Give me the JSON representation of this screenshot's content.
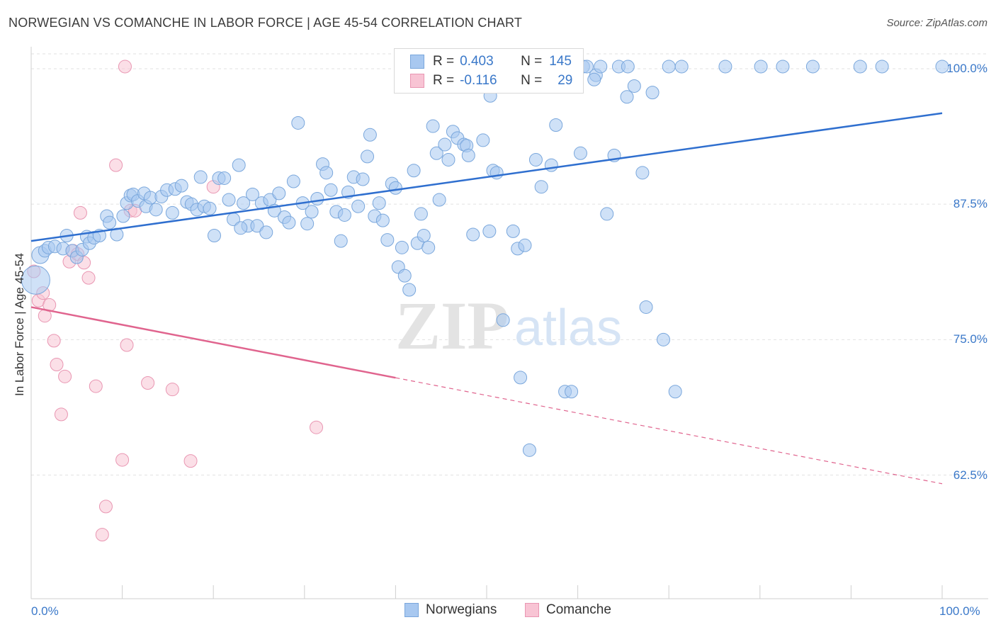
{
  "title": "NORWEGIAN VS COMANCHE IN LABOR FORCE | AGE 45-54 CORRELATION CHART",
  "source": "Source: ZipAtlas.com",
  "watermark": {
    "zip": "ZIP",
    "atlas": "atlas"
  },
  "legend": {
    "rows": [
      {
        "r_label": "R =",
        "r_value": "0.403",
        "n_label": "N =",
        "n_value": "145"
      },
      {
        "r_label": "R =",
        "r_value": "-0.116",
        "n_label": "N =",
        "n_value": "29"
      }
    ]
  },
  "bottom_legend": {
    "series1": "Norwegians",
    "series2": "Comanche"
  },
  "colors": {
    "norwegian_fill": "#a8c8f0",
    "norwegian_stroke": "#7aa7dc",
    "norwegian_line": "#2f6fcf",
    "comanche_fill": "#f8c4d4",
    "comanche_stroke": "#e996b2",
    "comanche_line": "#e0648e",
    "tick_text": "#3a78c9",
    "grid": "#e2e2e2"
  },
  "chart_data": {
    "type": "scatter",
    "title": "NORWEGIAN VS COMANCHE IN LABOR FORCE | AGE 45-54 CORRELATION CHART",
    "xlabel": "",
    "ylabel": "In Labor Force | Age 45-54",
    "xlim": [
      0,
      100
    ],
    "ylim": [
      50,
      101.5
    ],
    "x_tick_labels": [
      "0.0%",
      "100.0%"
    ],
    "y_tick_labels": [
      "62.5%",
      "75.0%",
      "87.5%",
      "100.0%"
    ],
    "y_ticks": [
      62.5,
      75.0,
      87.5,
      100.0
    ],
    "grid": true,
    "legend_position": "top-center",
    "series": [
      {
        "name": "Norwegians",
        "r": 0.403,
        "n": 145,
        "trend": {
          "x": [
            0,
            100
          ],
          "y": [
            84.1,
            95.9
          ],
          "dashed_from": null
        },
        "points": [
          [
            0.5,
            80.5,
            "L"
          ],
          [
            1.0,
            82.8,
            "M"
          ],
          [
            1.5,
            83.2
          ],
          [
            1.9,
            83.5
          ],
          [
            2.6,
            83.6
          ],
          [
            3.5,
            83.4
          ],
          [
            3.9,
            84.6
          ],
          [
            4.5,
            83.2
          ],
          [
            5.0,
            82.6
          ],
          [
            5.6,
            83.3
          ],
          [
            6.1,
            84.5
          ],
          [
            6.4,
            83.9
          ],
          [
            6.9,
            84.4
          ],
          [
            7.5,
            84.6
          ],
          [
            8.3,
            86.4
          ],
          [
            8.6,
            85.8
          ],
          [
            9.4,
            84.7
          ],
          [
            10.1,
            86.4
          ],
          [
            10.5,
            87.6
          ],
          [
            10.9,
            88.3
          ],
          [
            11.2,
            88.4
          ],
          [
            11.7,
            87.8
          ],
          [
            12.4,
            88.5
          ],
          [
            12.6,
            87.3
          ],
          [
            13.1,
            88.1
          ],
          [
            13.7,
            87.0
          ],
          [
            14.3,
            88.2
          ],
          [
            14.9,
            88.8
          ],
          [
            15.5,
            86.7
          ],
          [
            15.8,
            88.9
          ],
          [
            16.5,
            89.2
          ],
          [
            17.1,
            87.7
          ],
          [
            17.6,
            87.5
          ],
          [
            18.2,
            87.0
          ],
          [
            18.6,
            90.0
          ],
          [
            19.0,
            87.3
          ],
          [
            19.6,
            87.1
          ],
          [
            20.1,
            84.6
          ],
          [
            20.6,
            89.9
          ],
          [
            21.2,
            89.9
          ],
          [
            21.7,
            87.9
          ],
          [
            22.2,
            86.1
          ],
          [
            22.8,
            91.1
          ],
          [
            23.3,
            87.6
          ],
          [
            23.8,
            85.5
          ],
          [
            24.3,
            88.4
          ],
          [
            24.8,
            85.5
          ],
          [
            25.3,
            87.6
          ],
          [
            25.8,
            84.9
          ],
          [
            26.2,
            87.9
          ],
          [
            26.7,
            86.9
          ],
          [
            27.2,
            88.5
          ],
          [
            27.8,
            86.3
          ],
          [
            28.3,
            85.8
          ],
          [
            28.8,
            89.6
          ],
          [
            29.3,
            95.0
          ],
          [
            29.8,
            87.6
          ],
          [
            30.3,
            85.7
          ],
          [
            30.8,
            86.8
          ],
          [
            31.4,
            88.0
          ],
          [
            32.0,
            91.2
          ],
          [
            32.4,
            90.4
          ],
          [
            32.9,
            88.8
          ],
          [
            33.5,
            86.8
          ],
          [
            34.0,
            84.1
          ],
          [
            34.4,
            86.5
          ],
          [
            34.8,
            88.6
          ],
          [
            35.4,
            90.0
          ],
          [
            35.9,
            87.3
          ],
          [
            36.4,
            89.8
          ],
          [
            36.9,
            91.9
          ],
          [
            37.2,
            93.9
          ],
          [
            37.7,
            86.4
          ],
          [
            38.2,
            87.6
          ],
          [
            38.6,
            86.0
          ],
          [
            39.1,
            84.2
          ],
          [
            39.6,
            89.4
          ],
          [
            40.0,
            89.0
          ],
          [
            40.3,
            81.7
          ],
          [
            40.7,
            83.5
          ],
          [
            41.0,
            80.9
          ],
          [
            41.5,
            79.6
          ],
          [
            42.0,
            90.6
          ],
          [
            42.4,
            83.9
          ],
          [
            42.8,
            86.6
          ],
          [
            43.1,
            84.6
          ],
          [
            43.6,
            83.5
          ],
          [
            44.1,
            94.7
          ],
          [
            44.5,
            92.2
          ],
          [
            44.8,
            87.9
          ],
          [
            45.4,
            93.0
          ],
          [
            45.8,
            91.6
          ],
          [
            46.3,
            94.2
          ],
          [
            46.8,
            93.6
          ],
          [
            47.5,
            93.0
          ],
          [
            47.8,
            92.9
          ],
          [
            48.0,
            92.0
          ],
          [
            48.5,
            84.7
          ],
          [
            49.6,
            93.4
          ],
          [
            50.3,
            85.0
          ],
          [
            50.7,
            90.6
          ],
          [
            51.1,
            90.4
          ],
          [
            51.8,
            76.8
          ],
          [
            52.4,
            99.5
          ],
          [
            52.9,
            85.0
          ],
          [
            53.4,
            83.4
          ],
          [
            53.7,
            71.5
          ],
          [
            54.2,
            83.7
          ],
          [
            54.7,
            64.8
          ],
          [
            55.4,
            91.6
          ],
          [
            56.0,
            89.1
          ],
          [
            56.2,
            100.2
          ],
          [
            57.1,
            91.1
          ],
          [
            57.6,
            94.8
          ],
          [
            58.6,
            70.2
          ],
          [
            59.3,
            70.2
          ],
          [
            60.3,
            92.2
          ],
          [
            60.6,
            100.2
          ],
          [
            61.0,
            100.2
          ],
          [
            62.0,
            99.4
          ],
          [
            62.5,
            100.2
          ],
          [
            63.2,
            86.6
          ],
          [
            64.0,
            92.0
          ],
          [
            64.5,
            100.2
          ],
          [
            65.4,
            97.4
          ],
          [
            66.2,
            98.4
          ],
          [
            67.1,
            90.4
          ],
          [
            67.5,
            78.0
          ],
          [
            68.2,
            97.8
          ],
          [
            69.4,
            75.0
          ],
          [
            70.0,
            100.2
          ],
          [
            70.7,
            70.2
          ],
          [
            71.4,
            100.2
          ],
          [
            76.2,
            100.2
          ],
          [
            80.1,
            100.2
          ],
          [
            82.5,
            100.2
          ],
          [
            85.8,
            100.2
          ],
          [
            91.0,
            100.2
          ],
          [
            93.4,
            100.2
          ],
          [
            100.0,
            100.2
          ],
          [
            65.5,
            100.2
          ],
          [
            50.4,
            97.5
          ],
          [
            58.8,
            100.2
          ],
          [
            61.8,
            99.0
          ],
          [
            23.0,
            85.3
          ]
        ]
      },
      {
        "name": "Comanche",
        "r": -0.116,
        "n": 29,
        "trend": {
          "x": [
            0,
            100
          ],
          "y": [
            78.0,
            61.7
          ],
          "dashed_from": 40
        },
        "points": [
          [
            0.3,
            81.3
          ],
          [
            0.8,
            78.6
          ],
          [
            1.3,
            79.3
          ],
          [
            1.5,
            77.2
          ],
          [
            2.0,
            78.2
          ],
          [
            2.5,
            74.9
          ],
          [
            2.8,
            72.7
          ],
          [
            3.3,
            68.1
          ],
          [
            3.7,
            71.6
          ],
          [
            4.2,
            82.2
          ],
          [
            4.6,
            83.2
          ],
          [
            5.1,
            82.9
          ],
          [
            5.4,
            86.7
          ],
          [
            5.8,
            82.1
          ],
          [
            6.3,
            80.7
          ],
          [
            7.1,
            70.7
          ],
          [
            7.8,
            57.0
          ],
          [
            8.2,
            59.6
          ],
          [
            9.3,
            91.1
          ],
          [
            10.0,
            63.9
          ],
          [
            10.5,
            74.5
          ],
          [
            10.9,
            86.9
          ],
          [
            11.4,
            86.9
          ],
          [
            12.8,
            71.0
          ],
          [
            15.5,
            70.4
          ],
          [
            17.5,
            63.8
          ],
          [
            20.0,
            89.1
          ],
          [
            31.3,
            66.9
          ],
          [
            10.3,
            100.2
          ]
        ]
      }
    ]
  }
}
